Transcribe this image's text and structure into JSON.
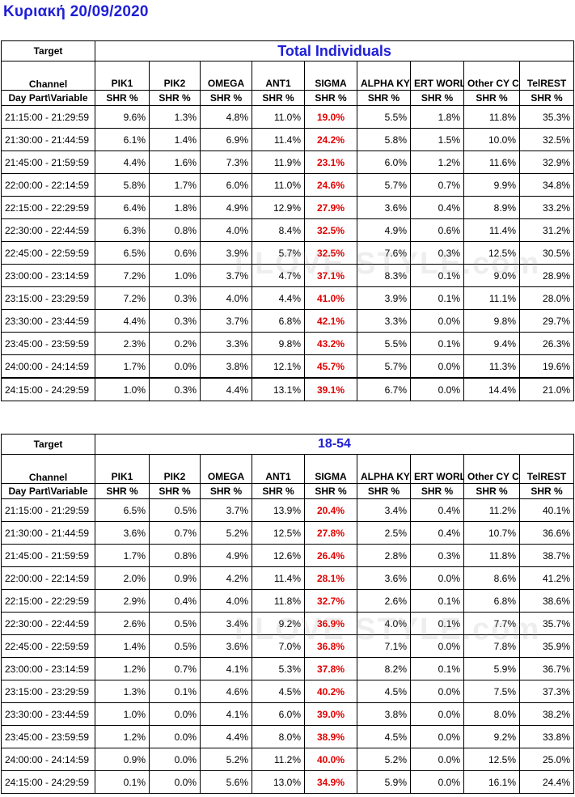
{
  "page_title": "Κυριακή 20/09/2020",
  "watermark": "I LOVE STYLE.com",
  "header": {
    "target_label": "Target",
    "channel_label": "Channel",
    "daypart_label": "Day Part\\Variable",
    "shr_label": "SHR %",
    "channels": [
      "PIK1",
      "PIK2",
      "OMEGA",
      "ANT1",
      "SIGMA",
      "ALPHA\nKYPROY",
      "ERT\nWORLD",
      "Other CY\nChannels",
      "TelREST"
    ]
  },
  "tables": [
    {
      "target": "Total Individuals",
      "rows": [
        {
          "daypart": "21:15:00 - 21:29:59",
          "values": [
            "9.6%",
            "1.3%",
            "4.8%",
            "11.0%",
            "19.0%",
            "5.5%",
            "1.8%",
            "11.8%",
            "35.3%"
          ]
        },
        {
          "daypart": "21:30:00 - 21:44:59",
          "values": [
            "6.1%",
            "1.4%",
            "6.9%",
            "11.4%",
            "24.2%",
            "5.8%",
            "1.5%",
            "10.0%",
            "32.5%"
          ]
        },
        {
          "daypart": "21:45:00 - 21:59:59",
          "values": [
            "4.4%",
            "1.6%",
            "7.3%",
            "11.9%",
            "23.1%",
            "6.0%",
            "1.2%",
            "11.6%",
            "32.9%"
          ]
        },
        {
          "daypart": "22:00:00 - 22:14:59",
          "values": [
            "5.8%",
            "1.7%",
            "6.0%",
            "11.0%",
            "24.6%",
            "5.7%",
            "0.7%",
            "9.9%",
            "34.8%"
          ]
        },
        {
          "daypart": "22:15:00 - 22:29:59",
          "values": [
            "6.4%",
            "1.8%",
            "4.9%",
            "12.9%",
            "27.9%",
            "3.6%",
            "0.4%",
            "8.9%",
            "33.2%"
          ]
        },
        {
          "daypart": "22:30:00 - 22:44:59",
          "values": [
            "6.3%",
            "0.8%",
            "4.0%",
            "8.4%",
            "32.5%",
            "4.9%",
            "0.6%",
            "11.4%",
            "31.2%"
          ]
        },
        {
          "daypart": "22:45:00 - 22:59:59",
          "values": [
            "6.5%",
            "0.6%",
            "3.9%",
            "5.7%",
            "32.5%",
            "7.6%",
            "0.3%",
            "12.5%",
            "30.5%"
          ]
        },
        {
          "daypart": "23:00:00 - 23:14:59",
          "values": [
            "7.2%",
            "1.0%",
            "3.7%",
            "4.7%",
            "37.1%",
            "8.3%",
            "0.1%",
            "9.0%",
            "28.9%"
          ]
        },
        {
          "daypart": "23:15:00 - 23:29:59",
          "values": [
            "7.2%",
            "0.3%",
            "4.0%",
            "4.4%",
            "41.0%",
            "3.9%",
            "0.1%",
            "11.1%",
            "28.0%"
          ]
        },
        {
          "daypart": "23:30:00 - 23:44:59",
          "values": [
            "4.4%",
            "0.3%",
            "3.7%",
            "6.8%",
            "42.1%",
            "3.3%",
            "0.0%",
            "9.8%",
            "29.7%"
          ]
        },
        {
          "daypart": "23:45:00 - 23:59:59",
          "values": [
            "2.3%",
            "0.2%",
            "3.3%",
            "9.8%",
            "43.2%",
            "5.5%",
            "0.1%",
            "9.4%",
            "26.3%"
          ]
        },
        {
          "daypart": "24:00:00 - 24:14:59",
          "values": [
            "1.7%",
            "0.0%",
            "3.8%",
            "12.1%",
            "45.7%",
            "5.7%",
            "0.0%",
            "11.3%",
            "19.6%"
          ]
        },
        {
          "daypart": "24:15:00 - 24:29:59",
          "values": [
            "1.0%",
            "0.3%",
            "4.4%",
            "13.1%",
            "39.1%",
            "6.7%",
            "0.0%",
            "14.4%",
            "21.0%"
          ]
        }
      ]
    },
    {
      "target": "18-54",
      "rows": [
        {
          "daypart": "21:15:00 - 21:29:59",
          "values": [
            "6.5%",
            "0.5%",
            "3.7%",
            "13.9%",
            "20.4%",
            "3.4%",
            "0.4%",
            "11.2%",
            "40.1%"
          ]
        },
        {
          "daypart": "21:30:00 - 21:44:59",
          "values": [
            "3.6%",
            "0.7%",
            "5.2%",
            "12.5%",
            "27.8%",
            "2.5%",
            "0.4%",
            "10.7%",
            "36.6%"
          ]
        },
        {
          "daypart": "21:45:00 - 21:59:59",
          "values": [
            "1.7%",
            "0.8%",
            "4.9%",
            "12.6%",
            "26.4%",
            "2.8%",
            "0.3%",
            "11.8%",
            "38.7%"
          ]
        },
        {
          "daypart": "22:00:00 - 22:14:59",
          "values": [
            "2.0%",
            "0.9%",
            "4.2%",
            "11.4%",
            "28.1%",
            "3.6%",
            "0.0%",
            "8.6%",
            "41.2%"
          ]
        },
        {
          "daypart": "22:15:00 - 22:29:59",
          "values": [
            "2.9%",
            "0.4%",
            "4.0%",
            "11.8%",
            "32.7%",
            "2.6%",
            "0.1%",
            "6.8%",
            "38.6%"
          ]
        },
        {
          "daypart": "22:30:00 - 22:44:59",
          "values": [
            "2.6%",
            "0.5%",
            "3.4%",
            "9.2%",
            "36.9%",
            "4.0%",
            "0.1%",
            "7.7%",
            "35.7%"
          ]
        },
        {
          "daypart": "22:45:00 - 22:59:59",
          "values": [
            "1.4%",
            "0.5%",
            "3.6%",
            "7.0%",
            "36.8%",
            "7.1%",
            "0.0%",
            "7.8%",
            "35.9%"
          ]
        },
        {
          "daypart": "23:00:00 - 23:14:59",
          "values": [
            "1.2%",
            "0.7%",
            "4.1%",
            "5.3%",
            "37.8%",
            "8.2%",
            "0.1%",
            "5.9%",
            "36.7%"
          ]
        },
        {
          "daypart": "23:15:00 - 23:29:59",
          "values": [
            "1.3%",
            "0.1%",
            "4.6%",
            "4.5%",
            "40.2%",
            "4.5%",
            "0.0%",
            "7.5%",
            "37.3%"
          ]
        },
        {
          "daypart": "23:30:00 - 23:44:59",
          "values": [
            "1.0%",
            "0.0%",
            "4.1%",
            "6.0%",
            "39.0%",
            "3.8%",
            "0.0%",
            "8.0%",
            "38.2%"
          ]
        },
        {
          "daypart": "23:45:00 - 23:59:59",
          "values": [
            "1.2%",
            "0.0%",
            "4.4%",
            "8.0%",
            "38.9%",
            "4.5%",
            "0.0%",
            "9.2%",
            "33.8%"
          ]
        },
        {
          "daypart": "24:00:00 - 24:14:59",
          "values": [
            "0.9%",
            "0.0%",
            "5.2%",
            "11.2%",
            "40.0%",
            "5.2%",
            "0.0%",
            "12.5%",
            "25.0%"
          ]
        },
        {
          "daypart": "24:15:00 - 24:29:59",
          "values": [
            "0.1%",
            "0.0%",
            "5.6%",
            "13.0%",
            "34.9%",
            "5.9%",
            "0.0%",
            "16.1%",
            "24.4%"
          ]
        }
      ]
    }
  ]
}
